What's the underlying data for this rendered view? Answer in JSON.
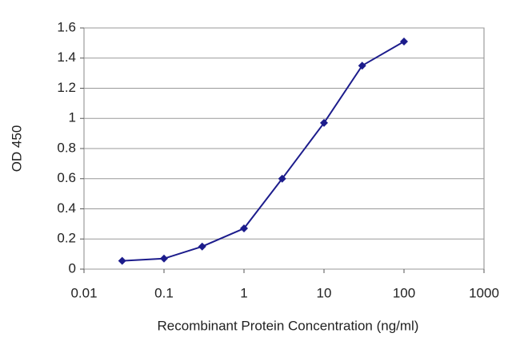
{
  "chart_data": {
    "type": "line",
    "x_label": "Recombinant Protein Concentration (ng/ml)",
    "y_label": "OD 450",
    "x": [
      0.03,
      0.1,
      0.3,
      1,
      3,
      10,
      30,
      100
    ],
    "series": [
      {
        "color": "#1c1c8c",
        "values": [
          0.055,
          0.07,
          0.15,
          0.27,
          0.6,
          0.97,
          1.35,
          1.51
        ]
      }
    ],
    "xscale": "log",
    "xlim": [
      0.01,
      1000
    ],
    "xticks": [
      0.01,
      0.1,
      1,
      10,
      100,
      1000
    ],
    "ylim": [
      0,
      1.6
    ],
    "yticks": [
      0,
      0.2,
      0.4,
      0.6,
      0.8,
      1,
      1.2,
      1.4,
      1.6
    ],
    "grid": true
  }
}
